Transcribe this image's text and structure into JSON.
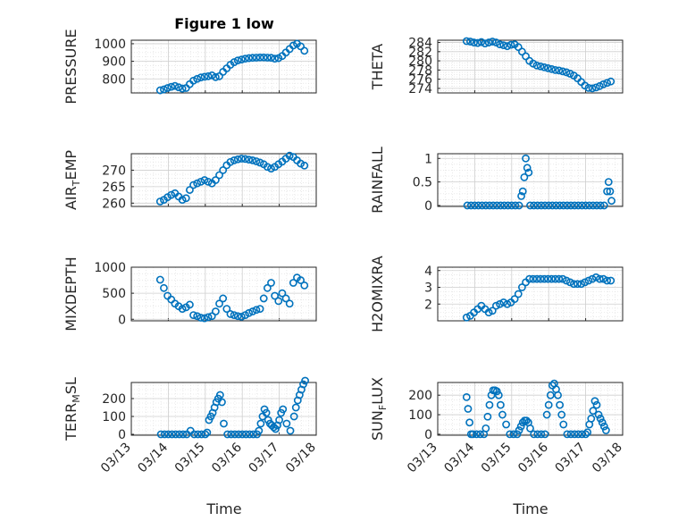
{
  "figure": {
    "title": "Figure 1 low",
    "xlabel": "Time",
    "x_ticks": [
      "03/13",
      "03/14",
      "03/15",
      "03/16",
      "03/17",
      "03/18"
    ]
  },
  "colors": {
    "marker": "#0072BD",
    "axis": "#262626",
    "grid": "#DCDCDC"
  },
  "chart_data": [
    {
      "id": "pressure",
      "type": "scatter",
      "ylabel": "PRESSURE",
      "ylabel_sub": "",
      "xlim": [
        0,
        5
      ],
      "ylim": [
        720,
        1020
      ],
      "yticks": [
        800,
        900,
        1000
      ],
      "x": [
        0.78,
        0.88,
        0.98,
        1.08,
        1.18,
        1.28,
        1.38,
        1.48,
        1.58,
        1.68,
        1.78,
        1.88,
        1.98,
        2.08,
        2.18,
        2.28,
        2.38,
        2.48,
        2.58,
        2.68,
        2.78,
        2.88,
        2.98,
        3.08,
        3.18,
        3.28,
        3.38,
        3.48,
        3.58,
        3.68,
        3.78,
        3.88,
        3.98,
        4.08,
        4.18,
        4.28,
        4.38,
        4.48,
        4.58,
        4.68
      ],
      "y": [
        735,
        740,
        748,
        755,
        760,
        752,
        745,
        748,
        770,
        790,
        800,
        808,
        812,
        815,
        820,
        810,
        815,
        840,
        860,
        880,
        895,
        905,
        910,
        915,
        918,
        920,
        921,
        922,
        922,
        921,
        920,
        915,
        918,
        930,
        950,
        970,
        990,
        1000,
        985,
        960
      ]
    },
    {
      "id": "theta",
      "type": "scatter",
      "ylabel": "THETA",
      "ylabel_sub": "",
      "xlim": [
        0,
        5
      ],
      "ylim": [
        273,
        284.5
      ],
      "yticks": [
        274,
        276,
        278,
        280,
        282,
        284
      ],
      "x": [
        0.78,
        0.88,
        0.98,
        1.08,
        1.18,
        1.28,
        1.38,
        1.48,
        1.58,
        1.68,
        1.78,
        1.88,
        1.98,
        2.08,
        2.18,
        2.28,
        2.38,
        2.48,
        2.58,
        2.68,
        2.78,
        2.88,
        2.98,
        3.08,
        3.18,
        3.28,
        3.38,
        3.48,
        3.58,
        3.68,
        3.78,
        3.88,
        3.98,
        4.08,
        4.18,
        4.28,
        4.38,
        4.48,
        4.58,
        4.68
      ],
      "y": [
        284.3,
        284.2,
        284.0,
        283.9,
        284.1,
        283.8,
        284.0,
        284.2,
        284.0,
        283.6,
        283.4,
        283.2,
        283.5,
        283.6,
        283.0,
        282.0,
        281.0,
        280.0,
        279.4,
        279.0,
        278.8,
        278.6,
        278.4,
        278.2,
        278.0,
        277.9,
        277.7,
        277.5,
        277.2,
        276.8,
        276.2,
        275.4,
        274.6,
        274.1,
        274.0,
        274.2,
        274.5,
        274.9,
        275.2,
        275.5
      ]
    },
    {
      "id": "air_temp",
      "type": "scatter",
      "ylabel": "AIR",
      "ylabel_sub": "T",
      "ylabel_suffix": "EMP",
      "xlim": [
        0,
        5
      ],
      "ylim": [
        259,
        275
      ],
      "yticks": [
        260,
        265,
        270
      ],
      "x": [
        0.78,
        0.88,
        0.98,
        1.08,
        1.18,
        1.28,
        1.38,
        1.48,
        1.58,
        1.68,
        1.78,
        1.88,
        1.98,
        2.08,
        2.18,
        2.28,
        2.38,
        2.48,
        2.58,
        2.68,
        2.78,
        2.88,
        2.98,
        3.08,
        3.18,
        3.28,
        3.38,
        3.48,
        3.58,
        3.68,
        3.78,
        3.88,
        3.98,
        4.08,
        4.18,
        4.28,
        4.38,
        4.48,
        4.58,
        4.68
      ],
      "y": [
        260.5,
        261.0,
        261.8,
        262.5,
        263.0,
        262.0,
        261.0,
        261.5,
        264.0,
        265.5,
        266.0,
        266.5,
        267.0,
        266.5,
        266.0,
        267.0,
        268.5,
        270.0,
        271.5,
        272.5,
        273.0,
        273.3,
        273.5,
        273.4,
        273.2,
        273.0,
        272.7,
        272.3,
        271.8,
        271.0,
        270.5,
        271.0,
        271.8,
        272.6,
        273.5,
        274.4,
        274.0,
        273.0,
        272.0,
        271.4
      ]
    },
    {
      "id": "rainfall",
      "type": "scatter",
      "ylabel": "RAINFALL",
      "ylabel_sub": "",
      "xlim": [
        0,
        5
      ],
      "ylim": [
        -0.02,
        1.1
      ],
      "yticks": [
        0,
        0.5,
        1
      ],
      "x": [
        0.8,
        0.9,
        1.0,
        1.1,
        1.2,
        1.3,
        1.4,
        1.5,
        1.6,
        1.7,
        1.8,
        1.9,
        2.0,
        2.1,
        2.2,
        2.26,
        2.3,
        2.34,
        2.38,
        2.42,
        2.46,
        2.5,
        2.6,
        2.7,
        2.8,
        2.9,
        3.0,
        3.1,
        3.2,
        3.3,
        3.4,
        3.5,
        3.6,
        3.7,
        3.8,
        3.9,
        4.0,
        4.1,
        4.2,
        4.3,
        4.4,
        4.5,
        4.58,
        4.62,
        4.66,
        4.7
      ],
      "y": [
        0,
        0,
        0,
        0,
        0,
        0,
        0,
        0,
        0,
        0,
        0,
        0,
        0,
        0,
        0,
        0.2,
        0.3,
        0.6,
        1.0,
        0.8,
        0.7,
        0,
        0,
        0,
        0,
        0,
        0,
        0,
        0,
        0,
        0,
        0,
        0,
        0,
        0,
        0,
        0,
        0,
        0,
        0,
        0,
        0,
        0.3,
        0.5,
        0.3,
        0.1
      ]
    },
    {
      "id": "mixdepth",
      "type": "scatter",
      "ylabel": "MIXDEPTH",
      "ylabel_sub": "",
      "xlim": [
        0,
        5
      ],
      "ylim": [
        -30,
        1000
      ],
      "yticks": [
        0,
        500,
        1000
      ],
      "x": [
        0.78,
        0.88,
        0.98,
        1.08,
        1.18,
        1.28,
        1.38,
        1.48,
        1.58,
        1.68,
        1.78,
        1.88,
        1.98,
        2.08,
        2.18,
        2.28,
        2.38,
        2.48,
        2.58,
        2.68,
        2.78,
        2.88,
        2.98,
        3.08,
        3.18,
        3.28,
        3.38,
        3.48,
        3.58,
        3.68,
        3.78,
        3.88,
        3.98,
        4.08,
        4.18,
        4.28,
        4.38,
        4.48,
        4.58,
        4.68
      ],
      "y": [
        760,
        600,
        450,
        380,
        300,
        250,
        200,
        230,
        280,
        80,
        60,
        30,
        20,
        40,
        60,
        150,
        300,
        400,
        200,
        100,
        80,
        60,
        50,
        80,
        120,
        150,
        180,
        200,
        400,
        600,
        700,
        450,
        350,
        500,
        400,
        300,
        700,
        800,
        750,
        650
      ]
    },
    {
      "id": "h2omixra",
      "type": "scatter",
      "ylabel": "H2OMIXRA",
      "ylabel_sub": "",
      "xlim": [
        0,
        5
      ],
      "ylim": [
        1,
        4.2
      ],
      "yticks": [
        2,
        3,
        4
      ],
      "x": [
        0.78,
        0.88,
        0.98,
        1.08,
        1.18,
        1.28,
        1.38,
        1.48,
        1.58,
        1.68,
        1.78,
        1.88,
        1.98,
        2.08,
        2.18,
        2.28,
        2.38,
        2.48,
        2.58,
        2.68,
        2.78,
        2.88,
        2.98,
        3.08,
        3.18,
        3.28,
        3.38,
        3.48,
        3.58,
        3.68,
        3.78,
        3.88,
        3.98,
        4.08,
        4.18,
        4.28,
        4.38,
        4.48,
        4.58,
        4.68
      ],
      "y": [
        1.2,
        1.3,
        1.5,
        1.7,
        1.9,
        1.7,
        1.5,
        1.6,
        1.9,
        2.0,
        2.1,
        2.0,
        2.1,
        2.3,
        2.6,
        3.0,
        3.3,
        3.5,
        3.5,
        3.5,
        3.5,
        3.5,
        3.5,
        3.5,
        3.5,
        3.5,
        3.5,
        3.4,
        3.3,
        3.2,
        3.2,
        3.2,
        3.3,
        3.4,
        3.5,
        3.6,
        3.5,
        3.5,
        3.4,
        3.4
      ]
    },
    {
      "id": "terr_msl",
      "type": "scatter",
      "ylabel": "TERR",
      "ylabel_sub": "M",
      "ylabel_suffix": "SL",
      "xlim": [
        0,
        5
      ],
      "ylim": [
        -5,
        290
      ],
      "yticks": [
        0,
        100,
        200
      ],
      "x": [
        0.8,
        0.9,
        1.0,
        1.1,
        1.2,
        1.3,
        1.4,
        1.5,
        1.6,
        1.7,
        1.8,
        1.9,
        2.0,
        2.05,
        2.1,
        2.15,
        2.2,
        2.25,
        2.3,
        2.35,
        2.4,
        2.45,
        2.5,
        2.6,
        2.7,
        2.8,
        2.9,
        3.0,
        3.1,
        3.2,
        3.3,
        3.4,
        3.45,
        3.5,
        3.55,
        3.6,
        3.65,
        3.7,
        3.75,
        3.8,
        3.85,
        3.9,
        3.95,
        4.0,
        4.05,
        4.1,
        4.2,
        4.3,
        4.4,
        4.45,
        4.5,
        4.55,
        4.6,
        4.65,
        4.7
      ],
      "y": [
        0,
        0,
        0,
        0,
        0,
        0,
        0,
        0,
        20,
        0,
        0,
        0,
        0,
        10,
        80,
        100,
        120,
        150,
        180,
        200,
        220,
        180,
        60,
        0,
        0,
        0,
        0,
        0,
        0,
        0,
        0,
        0,
        20,
        60,
        100,
        140,
        120,
        80,
        60,
        50,
        40,
        30,
        50,
        80,
        120,
        140,
        60,
        20,
        100,
        150,
        190,
        220,
        250,
        280,
        300
      ]
    },
    {
      "id": "sun_flux",
      "type": "scatter",
      "ylabel": "SUN",
      "ylabel_sub": "F",
      "ylabel_suffix": "LUX",
      "xlim": [
        0,
        5
      ],
      "ylim": [
        -5,
        265
      ],
      "yticks": [
        0,
        100,
        200
      ],
      "x": [
        0.78,
        0.82,
        0.86,
        0.9,
        0.95,
        1.05,
        1.15,
        1.25,
        1.3,
        1.35,
        1.4,
        1.45,
        1.5,
        1.55,
        1.6,
        1.65,
        1.7,
        1.75,
        1.85,
        1.95,
        2.05,
        2.15,
        2.2,
        2.25,
        2.3,
        2.35,
        2.4,
        2.45,
        2.5,
        2.6,
        2.7,
        2.8,
        2.9,
        2.95,
        3.0,
        3.05,
        3.1,
        3.15,
        3.2,
        3.25,
        3.3,
        3.35,
        3.4,
        3.5,
        3.6,
        3.7,
        3.8,
        3.9,
        4.0,
        4.05,
        4.1,
        4.15,
        4.2,
        4.25,
        4.3,
        4.35,
        4.4,
        4.45,
        4.5,
        4.55
      ],
      "y": [
        190,
        130,
        60,
        0,
        0,
        0,
        0,
        0,
        30,
        90,
        150,
        200,
        225,
        225,
        220,
        200,
        150,
        100,
        50,
        0,
        0,
        0,
        20,
        40,
        60,
        70,
        70,
        60,
        30,
        0,
        0,
        0,
        0,
        100,
        150,
        200,
        250,
        260,
        230,
        200,
        150,
        100,
        50,
        0,
        0,
        0,
        0,
        0,
        0,
        10,
        50,
        80,
        120,
        170,
        150,
        100,
        80,
        60,
        40,
        20
      ]
    }
  ]
}
